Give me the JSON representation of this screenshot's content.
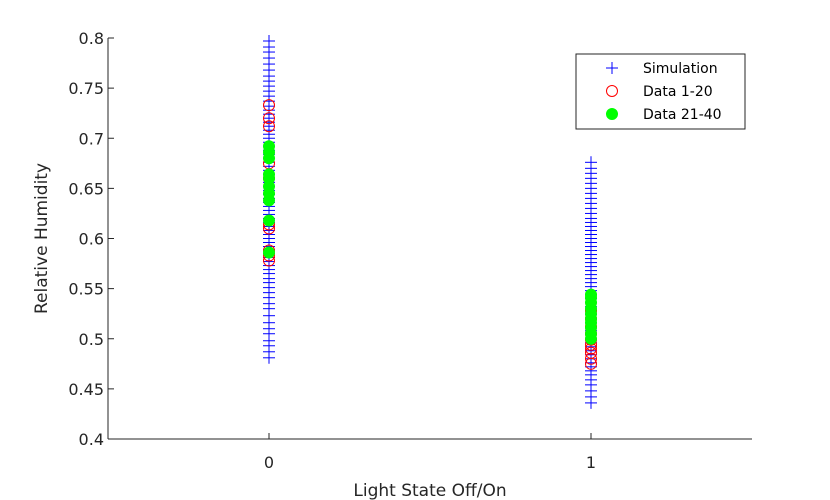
{
  "chart_data": {
    "type": "scatter",
    "title": "",
    "xlabel": "Light State Off/On",
    "ylabel": "Relative Humidity",
    "xlim": [
      -0.5,
      1.5
    ],
    "ylim": [
      0.4,
      0.8
    ],
    "xticks": [
      0,
      1
    ],
    "xtick_labels": [
      "0",
      "1"
    ],
    "yticks": [
      0.4,
      0.45,
      0.5,
      0.55,
      0.6,
      0.65,
      0.7,
      0.75,
      0.8
    ],
    "ytick_labels": [
      "0.4",
      "0.45",
      "0.5",
      "0.55",
      "0.6",
      "0.65",
      "0.7",
      "0.75",
      "0.8"
    ],
    "grid": false,
    "legend_position": "top-right",
    "series": [
      {
        "name": "Simulation",
        "marker": "plus",
        "color": "#0000ff",
        "points": [
          {
            "x": 0,
            "y": 0.481
          },
          {
            "x": 0,
            "y": 0.487
          },
          {
            "x": 0,
            "y": 0.493
          },
          {
            "x": 0,
            "y": 0.498
          },
          {
            "x": 0,
            "y": 0.505
          },
          {
            "x": 0,
            "y": 0.51
          },
          {
            "x": 0,
            "y": 0.516
          },
          {
            "x": 0,
            "y": 0.523
          },
          {
            "x": 0,
            "y": 0.53
          },
          {
            "x": 0,
            "y": 0.535
          },
          {
            "x": 0,
            "y": 0.541
          },
          {
            "x": 0,
            "y": 0.546
          },
          {
            "x": 0,
            "y": 0.551
          },
          {
            "x": 0,
            "y": 0.556
          },
          {
            "x": 0,
            "y": 0.56
          },
          {
            "x": 0,
            "y": 0.565
          },
          {
            "x": 0,
            "y": 0.569
          },
          {
            "x": 0,
            "y": 0.573
          },
          {
            "x": 0,
            "y": 0.577
          },
          {
            "x": 0,
            "y": 0.581
          },
          {
            "x": 0,
            "y": 0.585
          },
          {
            "x": 0,
            "y": 0.589
          },
          {
            "x": 0,
            "y": 0.592
          },
          {
            "x": 0,
            "y": 0.596
          },
          {
            "x": 0,
            "y": 0.6
          },
          {
            "x": 0,
            "y": 0.604
          },
          {
            "x": 0,
            "y": 0.608
          },
          {
            "x": 0,
            "y": 0.612
          },
          {
            "x": 0,
            "y": 0.616
          },
          {
            "x": 0,
            "y": 0.62
          },
          {
            "x": 0,
            "y": 0.624
          },
          {
            "x": 0,
            "y": 0.628
          },
          {
            "x": 0,
            "y": 0.632
          },
          {
            "x": 0,
            "y": 0.636
          },
          {
            "x": 0,
            "y": 0.64
          },
          {
            "x": 0,
            "y": 0.644
          },
          {
            "x": 0,
            "y": 0.648
          },
          {
            "x": 0,
            "y": 0.652
          },
          {
            "x": 0,
            "y": 0.656
          },
          {
            "x": 0,
            "y": 0.66
          },
          {
            "x": 0,
            "y": 0.664
          },
          {
            "x": 0,
            "y": 0.668
          },
          {
            "x": 0,
            "y": 0.672
          },
          {
            "x": 0,
            "y": 0.676
          },
          {
            "x": 0,
            "y": 0.68
          },
          {
            "x": 0,
            "y": 0.684
          },
          {
            "x": 0,
            "y": 0.688
          },
          {
            "x": 0,
            "y": 0.692
          },
          {
            "x": 0,
            "y": 0.696
          },
          {
            "x": 0,
            "y": 0.7
          },
          {
            "x": 0,
            "y": 0.704
          },
          {
            "x": 0,
            "y": 0.708
          },
          {
            "x": 0,
            "y": 0.712
          },
          {
            "x": 0,
            "y": 0.716
          },
          {
            "x": 0,
            "y": 0.72
          },
          {
            "x": 0,
            "y": 0.724
          },
          {
            "x": 0,
            "y": 0.728
          },
          {
            "x": 0,
            "y": 0.732
          },
          {
            "x": 0,
            "y": 0.737
          },
          {
            "x": 0,
            "y": 0.742
          },
          {
            "x": 0,
            "y": 0.747
          },
          {
            "x": 0,
            "y": 0.752
          },
          {
            "x": 0,
            "y": 0.757
          },
          {
            "x": 0,
            "y": 0.762
          },
          {
            "x": 0,
            "y": 0.768
          },
          {
            "x": 0,
            "y": 0.774
          },
          {
            "x": 0,
            "y": 0.78
          },
          {
            "x": 0,
            "y": 0.786
          },
          {
            "x": 0,
            "y": 0.791
          },
          {
            "x": 0,
            "y": 0.797
          },
          {
            "x": 1,
            "y": 0.436
          },
          {
            "x": 1,
            "y": 0.442
          },
          {
            "x": 1,
            "y": 0.448
          },
          {
            "x": 1,
            "y": 0.454
          },
          {
            "x": 1,
            "y": 0.459
          },
          {
            "x": 1,
            "y": 0.464
          },
          {
            "x": 1,
            "y": 0.468
          },
          {
            "x": 1,
            "y": 0.472
          },
          {
            "x": 1,
            "y": 0.476
          },
          {
            "x": 1,
            "y": 0.48
          },
          {
            "x": 1,
            "y": 0.484
          },
          {
            "x": 1,
            "y": 0.488
          },
          {
            "x": 1,
            "y": 0.492
          },
          {
            "x": 1,
            "y": 0.496
          },
          {
            "x": 1,
            "y": 0.5
          },
          {
            "x": 1,
            "y": 0.504
          },
          {
            "x": 1,
            "y": 0.508
          },
          {
            "x": 1,
            "y": 0.512
          },
          {
            "x": 1,
            "y": 0.516
          },
          {
            "x": 1,
            "y": 0.52
          },
          {
            "x": 1,
            "y": 0.524
          },
          {
            "x": 1,
            "y": 0.528
          },
          {
            "x": 1,
            "y": 0.532
          },
          {
            "x": 1,
            "y": 0.536
          },
          {
            "x": 1,
            "y": 0.54
          },
          {
            "x": 1,
            "y": 0.544
          },
          {
            "x": 1,
            "y": 0.548
          },
          {
            "x": 1,
            "y": 0.552
          },
          {
            "x": 1,
            "y": 0.556
          },
          {
            "x": 1,
            "y": 0.56
          },
          {
            "x": 1,
            "y": 0.564
          },
          {
            "x": 1,
            "y": 0.568
          },
          {
            "x": 1,
            "y": 0.572
          },
          {
            "x": 1,
            "y": 0.576
          },
          {
            "x": 1,
            "y": 0.58
          },
          {
            "x": 1,
            "y": 0.584
          },
          {
            "x": 1,
            "y": 0.588
          },
          {
            "x": 1,
            "y": 0.592
          },
          {
            "x": 1,
            "y": 0.596
          },
          {
            "x": 1,
            "y": 0.6
          },
          {
            "x": 1,
            "y": 0.604
          },
          {
            "x": 1,
            "y": 0.608
          },
          {
            "x": 1,
            "y": 0.612
          },
          {
            "x": 1,
            "y": 0.616
          },
          {
            "x": 1,
            "y": 0.62
          },
          {
            "x": 1,
            "y": 0.625
          },
          {
            "x": 1,
            "y": 0.63
          },
          {
            "x": 1,
            "y": 0.635
          },
          {
            "x": 1,
            "y": 0.64
          },
          {
            "x": 1,
            "y": 0.645
          },
          {
            "x": 1,
            "y": 0.65
          },
          {
            "x": 1,
            "y": 0.655
          },
          {
            "x": 1,
            "y": 0.66
          },
          {
            "x": 1,
            "y": 0.665
          },
          {
            "x": 1,
            "y": 0.67
          },
          {
            "x": 1,
            "y": 0.676
          }
        ]
      },
      {
        "name": "Data 1-20",
        "marker": "open-circle",
        "color": "#ff0000",
        "points": [
          {
            "x": 0,
            "y": 0.578
          },
          {
            "x": 0,
            "y": 0.583
          },
          {
            "x": 0,
            "y": 0.588
          },
          {
            "x": 0,
            "y": 0.61
          },
          {
            "x": 0,
            "y": 0.614
          },
          {
            "x": 0,
            "y": 0.66
          },
          {
            "x": 0,
            "y": 0.675
          },
          {
            "x": 0,
            "y": 0.712
          },
          {
            "x": 0,
            "y": 0.72
          },
          {
            "x": 0,
            "y": 0.733
          },
          {
            "x": 1,
            "y": 0.475
          },
          {
            "x": 1,
            "y": 0.48
          },
          {
            "x": 1,
            "y": 0.486
          },
          {
            "x": 1,
            "y": 0.49
          },
          {
            "x": 1,
            "y": 0.494
          },
          {
            "x": 1,
            "y": 0.499
          },
          {
            "x": 1,
            "y": 0.505
          },
          {
            "x": 1,
            "y": 0.512
          },
          {
            "x": 1,
            "y": 0.52
          },
          {
            "x": 1,
            "y": 0.528
          }
        ]
      },
      {
        "name": "Data 21-40",
        "marker": "filled-circle",
        "color": "#00ff00",
        "points": [
          {
            "x": 0,
            "y": 0.586
          },
          {
            "x": 0,
            "y": 0.618
          },
          {
            "x": 0,
            "y": 0.638
          },
          {
            "x": 0,
            "y": 0.645
          },
          {
            "x": 0,
            "y": 0.652
          },
          {
            "x": 0,
            "y": 0.66
          },
          {
            "x": 0,
            "y": 0.664
          },
          {
            "x": 0,
            "y": 0.68
          },
          {
            "x": 0,
            "y": 0.686
          },
          {
            "x": 0,
            "y": 0.692
          },
          {
            "x": 1,
            "y": 0.5
          },
          {
            "x": 1,
            "y": 0.505
          },
          {
            "x": 1,
            "y": 0.511
          },
          {
            "x": 1,
            "y": 0.516
          },
          {
            "x": 1,
            "y": 0.52
          },
          {
            "x": 1,
            "y": 0.525
          },
          {
            "x": 1,
            "y": 0.53
          },
          {
            "x": 1,
            "y": 0.536
          },
          {
            "x": 1,
            "y": 0.541
          },
          {
            "x": 1,
            "y": 0.544
          }
        ]
      }
    ]
  }
}
